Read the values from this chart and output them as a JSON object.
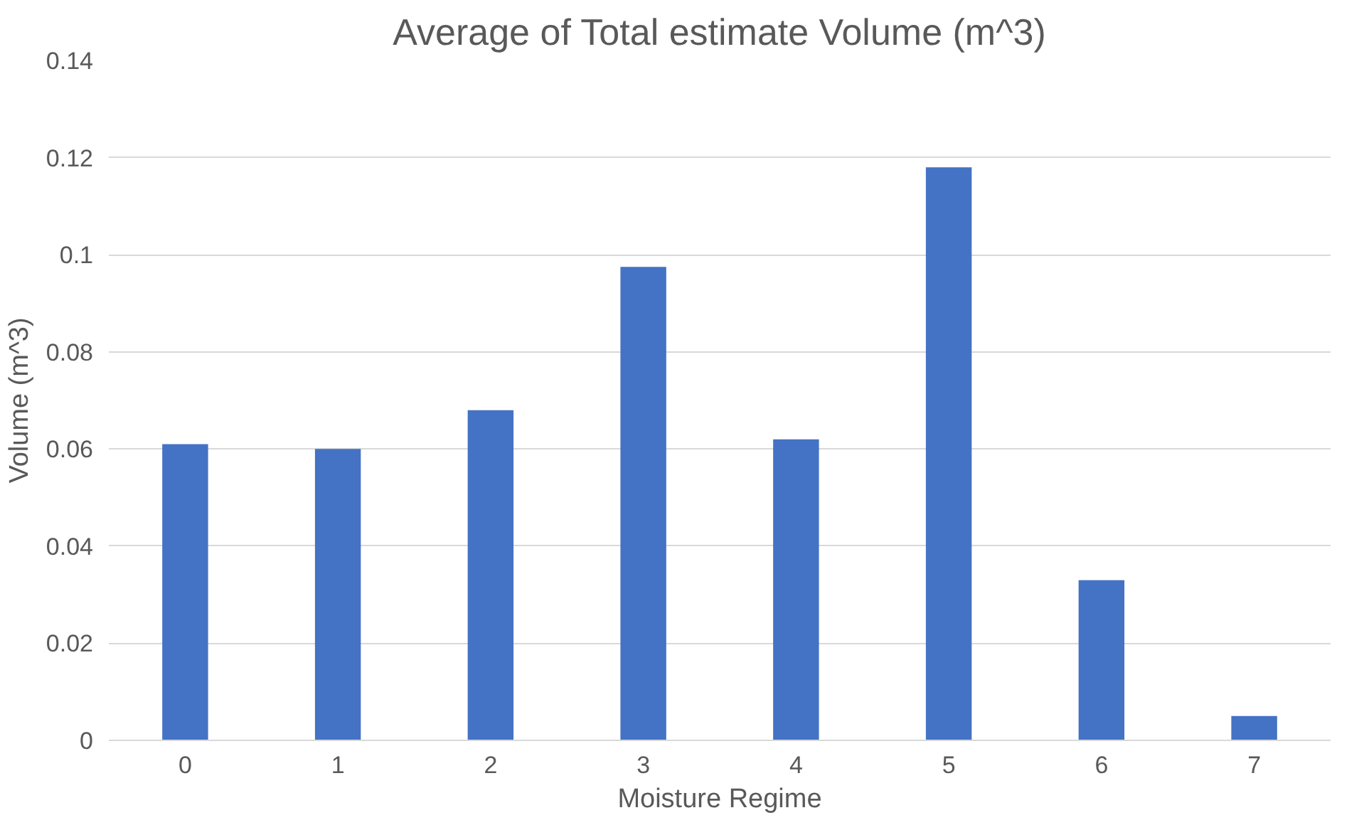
{
  "chart_data": {
    "type": "bar",
    "title": "Average of Total estimate Volume (m^3)",
    "xlabel": "Moisture Regime",
    "ylabel": "Volume (m^3)",
    "categories": [
      "0",
      "1",
      "2",
      "3",
      "4",
      "5",
      "6",
      "7"
    ],
    "series": [
      {
        "color": "#4472c4",
        "values": [
          0.061,
          0.06,
          0.068,
          0.0975,
          0.062,
          0.118,
          0.033,
          0.005
        ]
      }
    ],
    "ylim": [
      0,
      0.14
    ],
    "yticks": [
      0,
      0.02,
      0.04,
      0.06,
      0.08,
      0.1,
      0.12,
      0.14
    ],
    "grid": "y"
  }
}
